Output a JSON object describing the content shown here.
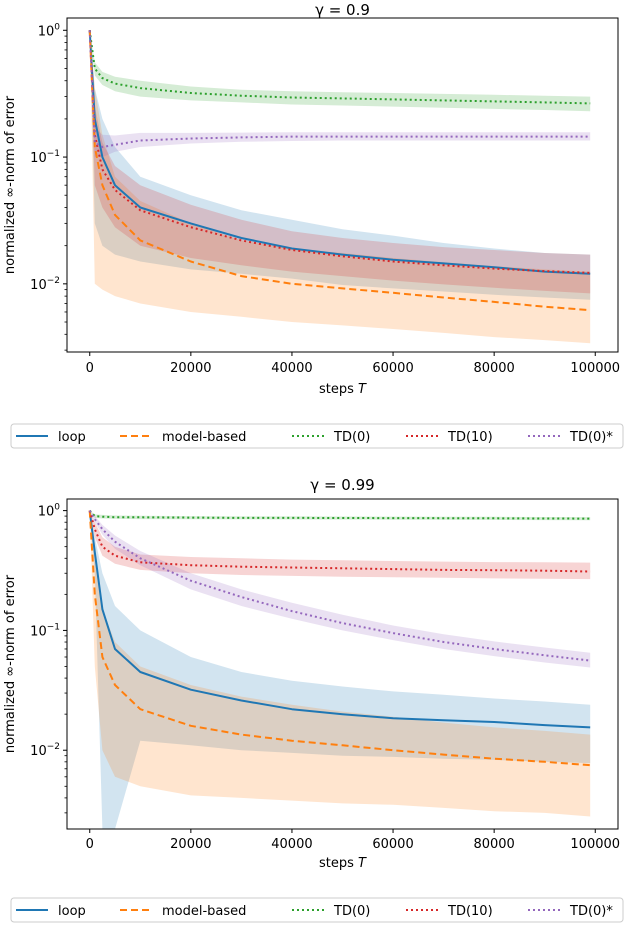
{
  "legend": {
    "placement": "below-each-chart",
    "entries": [
      {
        "label": "loop",
        "color": "#1f77b4",
        "dash": "solid"
      },
      {
        "label": "model-based",
        "color": "#ff7f0e",
        "dash": "dashed"
      },
      {
        "label": "TD(0)",
        "color": "#2ca02c",
        "dash": "dotted"
      },
      {
        "label": "TD(10)",
        "color": "#d62728",
        "dash": "dotted"
      },
      {
        "label": "TD(0)*",
        "color": "#9467bd",
        "dash": "dotted"
      }
    ]
  },
  "chart_data": [
    {
      "type": "line",
      "title": "γ = 0.9",
      "xlabel": "steps T",
      "ylabel": "normalized ∞-norm of error",
      "xlim": [
        -4500,
        104500
      ],
      "xticks": [
        0,
        20000,
        40000,
        60000,
        80000,
        100000
      ],
      "xtick_labels": [
        "0",
        "20000",
        "40000",
        "60000",
        "80000",
        "100000"
      ],
      "y_scale": "log",
      "ylim": [
        0.0029,
        1.25
      ],
      "yticks": [
        0.01,
        0.1,
        1
      ],
      "ytick_labels": [
        "10^-2",
        "10^-1",
        "10^0"
      ],
      "grid": false,
      "x": [
        0,
        1000,
        2500,
        5000,
        10000,
        20000,
        30000,
        40000,
        50000,
        60000,
        70000,
        80000,
        90000,
        99000
      ],
      "series": [
        {
          "name": "loop",
          "color": "#1f77b4",
          "dash": "solid",
          "values": [
            1.0,
            0.2,
            0.1,
            0.06,
            0.04,
            0.03,
            0.023,
            0.019,
            0.017,
            0.0155,
            0.0145,
            0.0135,
            0.0125,
            0.012
          ],
          "band_low": [
            1.0,
            0.03,
            0.02,
            0.017,
            0.015,
            0.013,
            0.012,
            0.011,
            0.0098,
            0.0092,
            0.0087,
            0.0082,
            0.0078,
            0.0075
          ],
          "band_high": [
            1.0,
            0.35,
            0.2,
            0.12,
            0.07,
            0.05,
            0.038,
            0.032,
            0.027,
            0.024,
            0.021,
            0.019,
            0.0175,
            0.017
          ]
        },
        {
          "name": "model-based",
          "color": "#ff7f0e",
          "dash": "dashed",
          "values": [
            1.0,
            0.12,
            0.06,
            0.035,
            0.022,
            0.015,
            0.0115,
            0.01,
            0.0092,
            0.0085,
            0.0078,
            0.0072,
            0.0066,
            0.0062
          ],
          "band_low": [
            1.0,
            0.01,
            0.009,
            0.008,
            0.007,
            0.006,
            0.0055,
            0.005,
            0.0047,
            0.0044,
            0.0041,
            0.0038,
            0.0036,
            0.0034
          ],
          "band_high": [
            1.0,
            0.35,
            0.15,
            0.07,
            0.045,
            0.03,
            0.022,
            0.019,
            0.0175,
            0.016,
            0.0148,
            0.0138,
            0.013,
            0.0125
          ]
        },
        {
          "name": "TD(0)",
          "color": "#2ca02c",
          "dash": "dotted",
          "values": [
            1.0,
            0.5,
            0.42,
            0.38,
            0.35,
            0.32,
            0.305,
            0.295,
            0.29,
            0.285,
            0.28,
            0.275,
            0.27,
            0.265
          ],
          "band_low": [
            1.0,
            0.44,
            0.37,
            0.33,
            0.3,
            0.28,
            0.27,
            0.26,
            0.255,
            0.25,
            0.245,
            0.24,
            0.235,
            0.23
          ],
          "band_high": [
            1.0,
            0.56,
            0.47,
            0.43,
            0.4,
            0.36,
            0.34,
            0.33,
            0.325,
            0.32,
            0.315,
            0.31,
            0.305,
            0.3
          ]
        },
        {
          "name": "TD(10)",
          "color": "#d62728",
          "dash": "dotted",
          "values": [
            1.0,
            0.15,
            0.08,
            0.055,
            0.038,
            0.028,
            0.022,
            0.0185,
            0.0165,
            0.015,
            0.014,
            0.0132,
            0.0126,
            0.0122
          ],
          "band_low": [
            1.0,
            0.06,
            0.04,
            0.028,
            0.02,
            0.016,
            0.014,
            0.0125,
            0.0115,
            0.0106,
            0.0099,
            0.0093,
            0.0088,
            0.0084
          ],
          "band_high": [
            1.0,
            0.25,
            0.13,
            0.085,
            0.06,
            0.042,
            0.032,
            0.026,
            0.023,
            0.021,
            0.0195,
            0.0185,
            0.0175,
            0.017
          ]
        },
        {
          "name": "TD(0)*",
          "color": "#9467bd",
          "dash": "dotted",
          "values": [
            1.0,
            0.13,
            0.12,
            0.125,
            0.135,
            0.14,
            0.143,
            0.145,
            0.145,
            0.145,
            0.145,
            0.145,
            0.145,
            0.145
          ],
          "band_low": [
            1.0,
            0.1,
            0.1,
            0.11,
            0.12,
            0.128,
            0.132,
            0.134,
            0.135,
            0.135,
            0.135,
            0.135,
            0.135,
            0.135
          ],
          "band_high": [
            1.0,
            0.17,
            0.15,
            0.148,
            0.155,
            0.155,
            0.156,
            0.157,
            0.157,
            0.157,
            0.157,
            0.157,
            0.157,
            0.157
          ]
        }
      ]
    },
    {
      "type": "line",
      "title": "γ = 0.99",
      "xlabel": "steps T",
      "ylabel": "normalized ∞-norm of error",
      "xlim": [
        -4500,
        104500
      ],
      "xticks": [
        0,
        20000,
        40000,
        60000,
        80000,
        100000
      ],
      "xtick_labels": [
        "0",
        "20000",
        "40000",
        "60000",
        "80000",
        "100000"
      ],
      "y_scale": "log",
      "ylim": [
        0.0022,
        1.25
      ],
      "yticks": [
        0.01,
        0.1,
        1
      ],
      "ytick_labels": [
        "10^-2",
        "10^-1",
        "10^0"
      ],
      "grid": false,
      "x": [
        0,
        1000,
        2500,
        5000,
        10000,
        20000,
        30000,
        40000,
        50000,
        60000,
        70000,
        80000,
        90000,
        99000
      ],
      "series": [
        {
          "name": "loop",
          "color": "#1f77b4",
          "dash": "solid",
          "values": [
            1.0,
            0.45,
            0.15,
            0.07,
            0.045,
            0.032,
            0.026,
            0.022,
            0.02,
            0.0185,
            0.0178,
            0.0172,
            0.0162,
            0.0155
          ],
          "band_low": [
            1.0,
            0.3,
            0.0022,
            0.0022,
            0.012,
            0.011,
            0.01,
            0.0095,
            0.009,
            0.0088,
            0.0085,
            0.0083,
            0.008,
            0.0078
          ],
          "band_high": [
            1.0,
            0.6,
            0.3,
            0.16,
            0.1,
            0.06,
            0.045,
            0.038,
            0.034,
            0.031,
            0.029,
            0.027,
            0.0255,
            0.024
          ]
        },
        {
          "name": "model-based",
          "color": "#ff7f0e",
          "dash": "dashed",
          "values": [
            1.0,
            0.2,
            0.06,
            0.035,
            0.022,
            0.016,
            0.0135,
            0.012,
            0.011,
            0.01,
            0.0092,
            0.0085,
            0.008,
            0.0075
          ],
          "band_low": [
            1.0,
            0.05,
            0.01,
            0.006,
            0.005,
            0.0042,
            0.004,
            0.0038,
            0.0036,
            0.0035,
            0.0033,
            0.0031,
            0.003,
            0.0028
          ],
          "band_high": [
            1.0,
            0.5,
            0.15,
            0.08,
            0.05,
            0.035,
            0.028,
            0.024,
            0.021,
            0.019,
            0.017,
            0.0155,
            0.0145,
            0.0135
          ]
        },
        {
          "name": "TD(0)",
          "color": "#2ca02c",
          "dash": "dotted",
          "values": [
            1.0,
            0.9,
            0.89,
            0.88,
            0.88,
            0.875,
            0.87,
            0.87,
            0.868,
            0.866,
            0.864,
            0.862,
            0.86,
            0.858
          ],
          "band_low": [
            1.0,
            0.87,
            0.86,
            0.855,
            0.85,
            0.848,
            0.845,
            0.843,
            0.841,
            0.84,
            0.838,
            0.836,
            0.834,
            0.832
          ],
          "band_high": [
            1.0,
            0.93,
            0.92,
            0.91,
            0.905,
            0.9,
            0.895,
            0.895,
            0.893,
            0.891,
            0.889,
            0.887,
            0.885,
            0.883
          ]
        },
        {
          "name": "TD(10)",
          "color": "#d62728",
          "dash": "dotted",
          "values": [
            1.0,
            0.7,
            0.5,
            0.42,
            0.37,
            0.35,
            0.34,
            0.335,
            0.33,
            0.325,
            0.32,
            0.318,
            0.315,
            0.31
          ],
          "band_low": [
            1.0,
            0.6,
            0.42,
            0.36,
            0.32,
            0.3,
            0.29,
            0.285,
            0.28,
            0.278,
            0.275,
            0.272,
            0.27,
            0.268
          ],
          "band_high": [
            1.0,
            0.8,
            0.6,
            0.5,
            0.43,
            0.41,
            0.4,
            0.39,
            0.385,
            0.38,
            0.375,
            0.372,
            0.37,
            0.368
          ]
        },
        {
          "name": "TD(0)*",
          "color": "#9467bd",
          "dash": "dotted",
          "values": [
            1.0,
            0.85,
            0.7,
            0.55,
            0.4,
            0.26,
            0.19,
            0.145,
            0.115,
            0.095,
            0.08,
            0.07,
            0.062,
            0.056
          ],
          "band_low": [
            1.0,
            0.8,
            0.63,
            0.48,
            0.35,
            0.22,
            0.16,
            0.125,
            0.1,
            0.083,
            0.07,
            0.061,
            0.054,
            0.049
          ],
          "band_high": [
            1.0,
            0.9,
            0.76,
            0.62,
            0.46,
            0.3,
            0.22,
            0.17,
            0.135,
            0.11,
            0.093,
            0.081,
            0.072,
            0.065
          ]
        }
      ]
    }
  ]
}
